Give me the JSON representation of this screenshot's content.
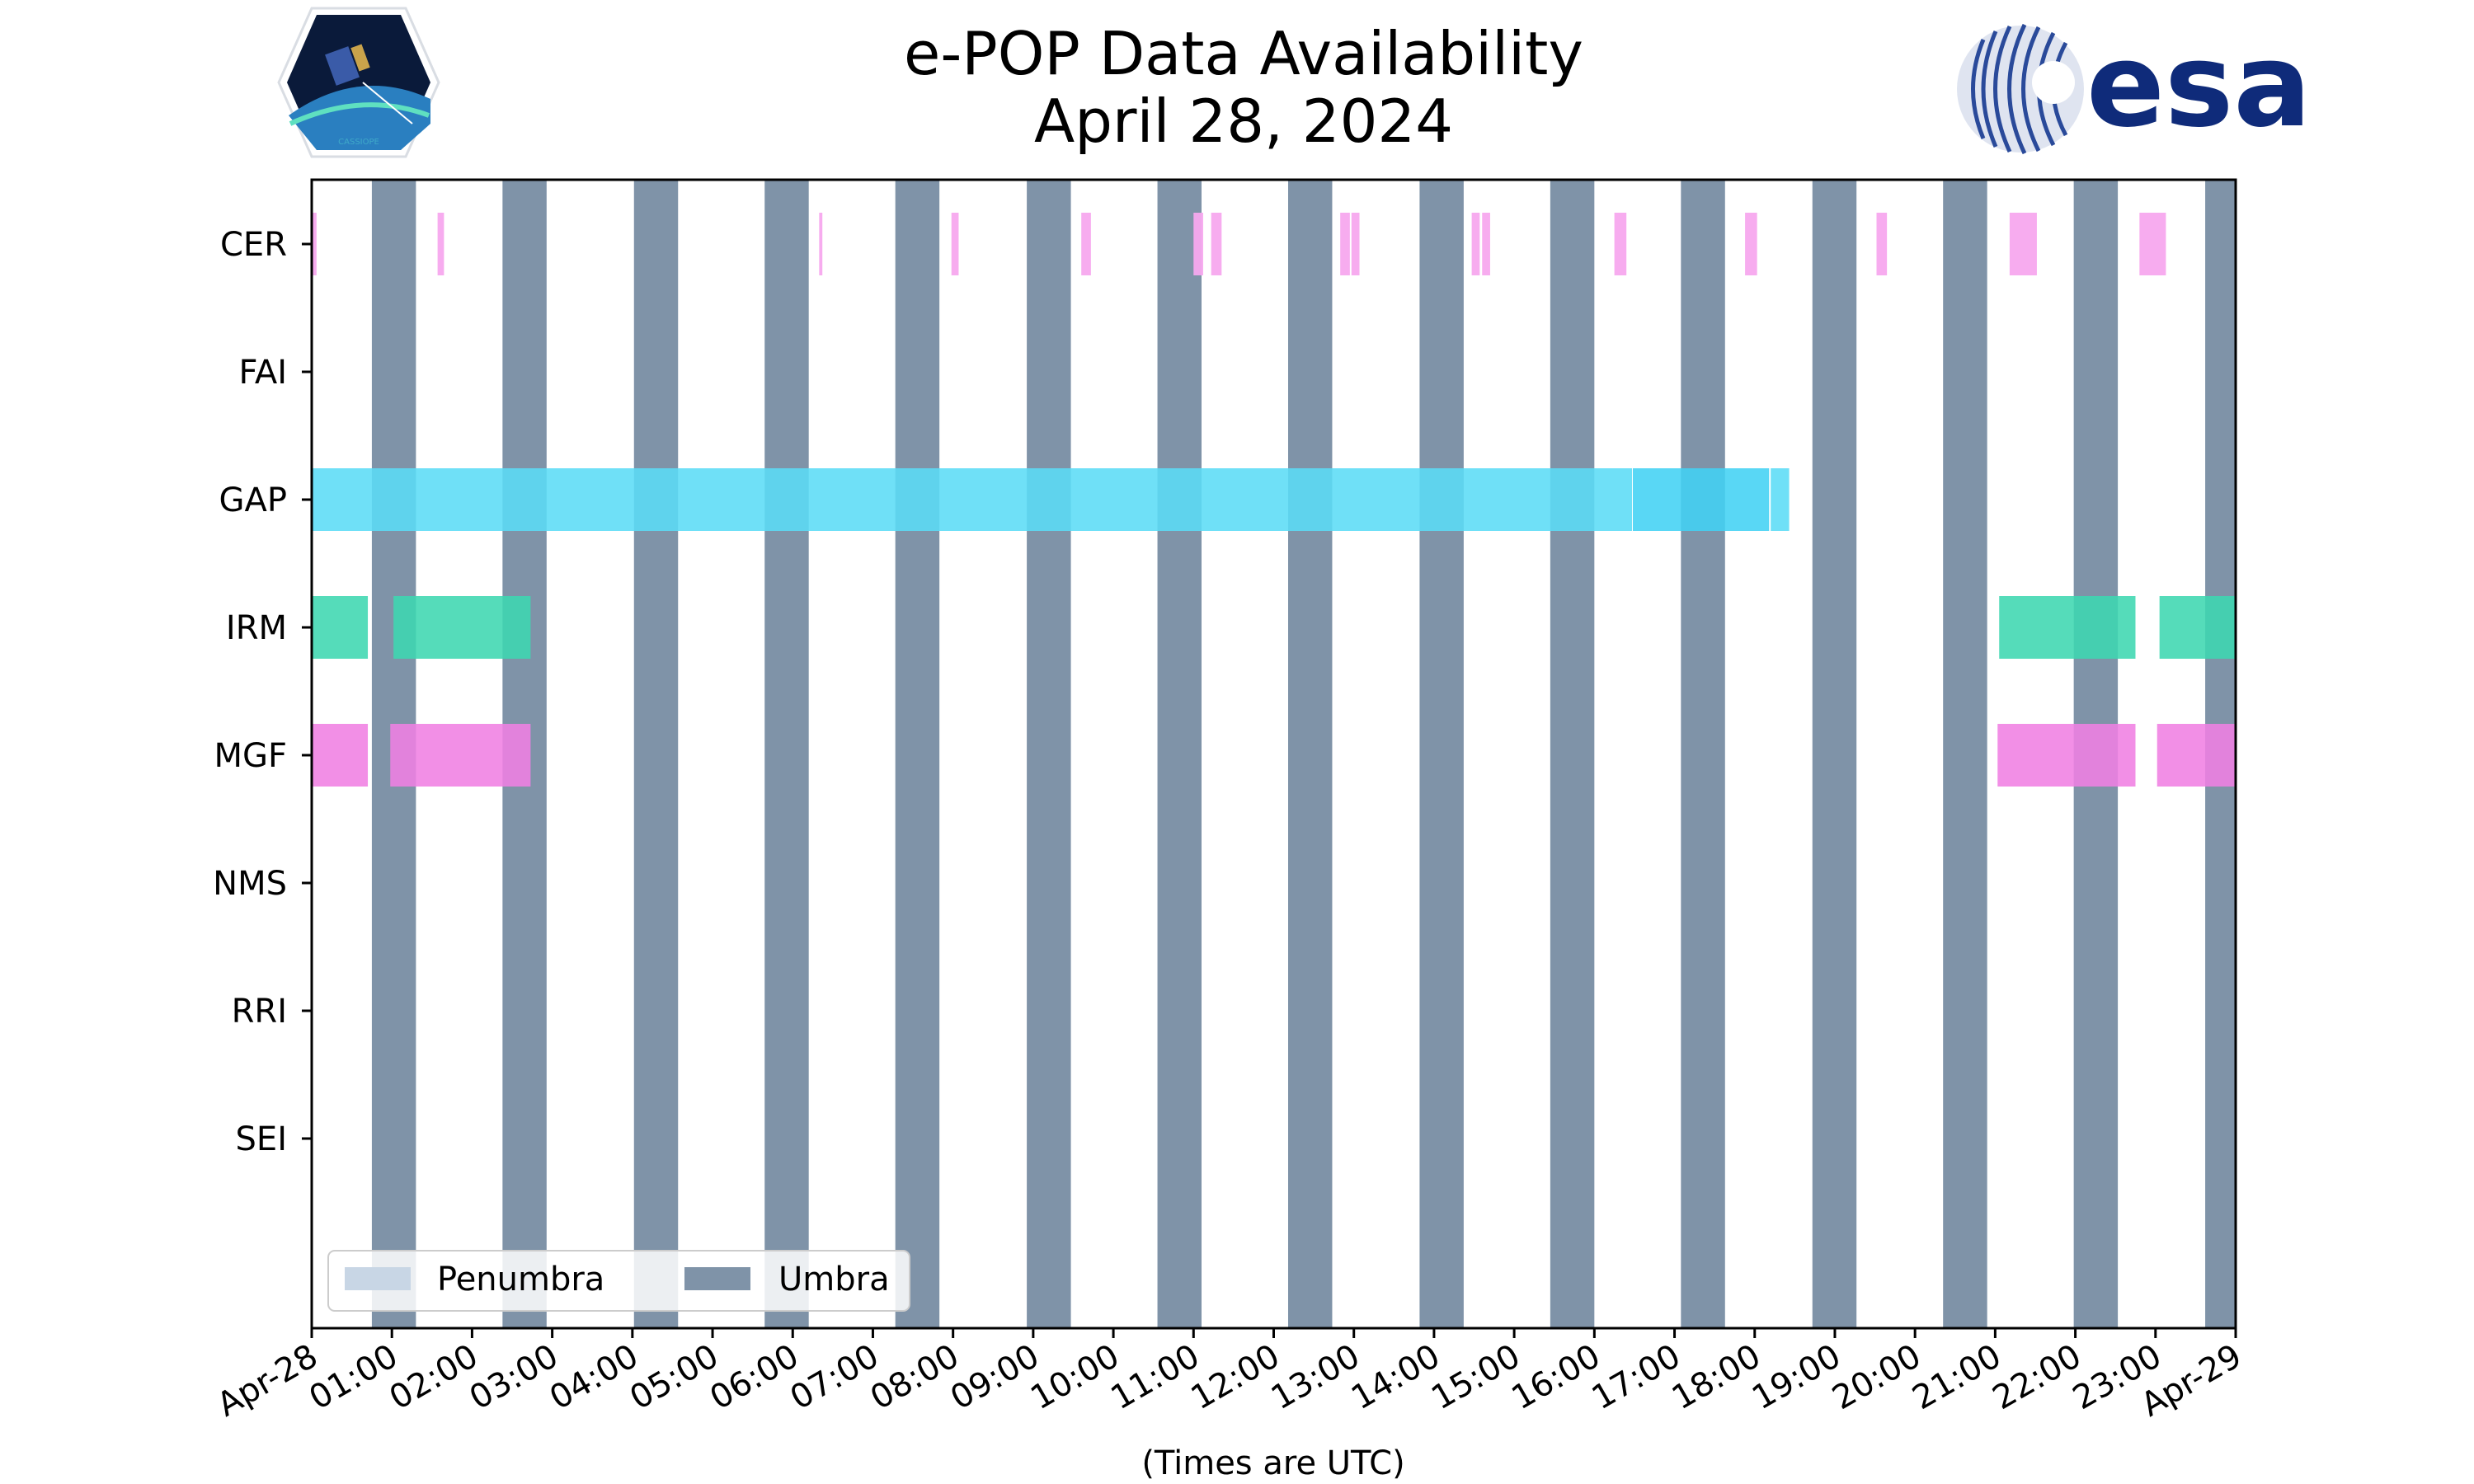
{
  "title": "e-POP Data Availability",
  "subtitle": "April 28, 2024",
  "logos": {
    "left": "cassiope-logo",
    "left_text": "CASSIOPE",
    "right": "esa-logo",
    "right_text": "esa"
  },
  "colors": {
    "umbra": "#7f93a8",
    "penumbra": "#c8d6e5",
    "CER": "#f7a8ee",
    "GAP": "#5bdcf6",
    "GAP_dark": "#42d2f4",
    "IRM": "#3ed7b0",
    "MGF": "#f07fe2",
    "axis": "#000000"
  },
  "chart_data": {
    "type": "timeline",
    "title": "e-POP Data Availability",
    "subtitle": "April 28, 2024",
    "xlabel": "(Times are UTC)",
    "x_unit": "hours UTC",
    "xlim": [
      0,
      24
    ],
    "x_ticks": [
      {
        "value": 0,
        "label": "Apr-28"
      },
      {
        "value": 1,
        "label": "01:00"
      },
      {
        "value": 2,
        "label": "02:00"
      },
      {
        "value": 3,
        "label": "03:00"
      },
      {
        "value": 4,
        "label": "04:00"
      },
      {
        "value": 5,
        "label": "05:00"
      },
      {
        "value": 6,
        "label": "06:00"
      },
      {
        "value": 7,
        "label": "07:00"
      },
      {
        "value": 8,
        "label": "08:00"
      },
      {
        "value": 9,
        "label": "09:00"
      },
      {
        "value": 10,
        "label": "10:00"
      },
      {
        "value": 11,
        "label": "11:00"
      },
      {
        "value": 12,
        "label": "12:00"
      },
      {
        "value": 13,
        "label": "13:00"
      },
      {
        "value": 14,
        "label": "14:00"
      },
      {
        "value": 15,
        "label": "15:00"
      },
      {
        "value": 16,
        "label": "16:00"
      },
      {
        "value": 17,
        "label": "17:00"
      },
      {
        "value": 18,
        "label": "18:00"
      },
      {
        "value": 19,
        "label": "19:00"
      },
      {
        "value": 20,
        "label": "20:00"
      },
      {
        "value": 21,
        "label": "21:00"
      },
      {
        "value": 22,
        "label": "22:00"
      },
      {
        "value": 23,
        "label": "23:00"
      },
      {
        "value": 24,
        "label": "Apr-29"
      }
    ],
    "instruments": [
      "CER",
      "FAI",
      "GAP",
      "IRM",
      "MGF",
      "NMS",
      "RRI",
      "SEI"
    ],
    "umbra": [
      [
        0.75,
        1.3
      ],
      [
        2.38,
        2.93
      ],
      [
        4.02,
        4.57
      ],
      [
        5.65,
        6.2
      ],
      [
        7.28,
        7.83
      ],
      [
        8.92,
        9.47
      ],
      [
        10.55,
        11.1
      ],
      [
        12.18,
        12.73
      ],
      [
        13.82,
        14.37
      ],
      [
        15.45,
        16.0
      ],
      [
        17.08,
        17.63
      ],
      [
        18.72,
        19.27
      ],
      [
        20.35,
        20.9
      ],
      [
        21.98,
        22.53
      ],
      [
        23.62,
        24.0
      ]
    ],
    "penumbra": [],
    "series": [
      {
        "name": "CER",
        "segments": [
          [
            0.0,
            0.06
          ],
          [
            1.57,
            1.65
          ],
          [
            6.33,
            6.37
          ],
          [
            7.98,
            8.07
          ],
          [
            9.6,
            9.72
          ],
          [
            11.0,
            11.12
          ],
          [
            11.22,
            11.35
          ],
          [
            12.83,
            12.95
          ],
          [
            12.97,
            13.07
          ],
          [
            14.47,
            14.57
          ],
          [
            14.6,
            14.7
          ],
          [
            16.25,
            16.4
          ],
          [
            17.88,
            18.03
          ],
          [
            19.52,
            19.65
          ],
          [
            21.18,
            21.52
          ],
          [
            22.8,
            23.13
          ]
        ]
      },
      {
        "name": "FAI",
        "segments": []
      },
      {
        "name": "GAP",
        "segments": [
          [
            0.0,
            16.47
          ],
          [
            16.48,
            18.18
          ],
          [
            18.2,
            18.43
          ]
        ]
      },
      {
        "name": "IRM",
        "segments": [
          [
            0.0,
            0.7
          ],
          [
            1.02,
            2.73
          ],
          [
            21.05,
            22.75
          ],
          [
            23.05,
            24.0
          ]
        ]
      },
      {
        "name": "MGF",
        "segments": [
          [
            0.0,
            0.7
          ],
          [
            0.98,
            2.73
          ],
          [
            21.03,
            22.75
          ],
          [
            23.02,
            24.0
          ]
        ]
      },
      {
        "name": "NMS",
        "segments": []
      },
      {
        "name": "RRI",
        "segments": []
      },
      {
        "name": "SEI",
        "segments": []
      }
    ],
    "legend": {
      "position": "lower-left",
      "items": [
        "Penumbra",
        "Umbra"
      ]
    }
  }
}
